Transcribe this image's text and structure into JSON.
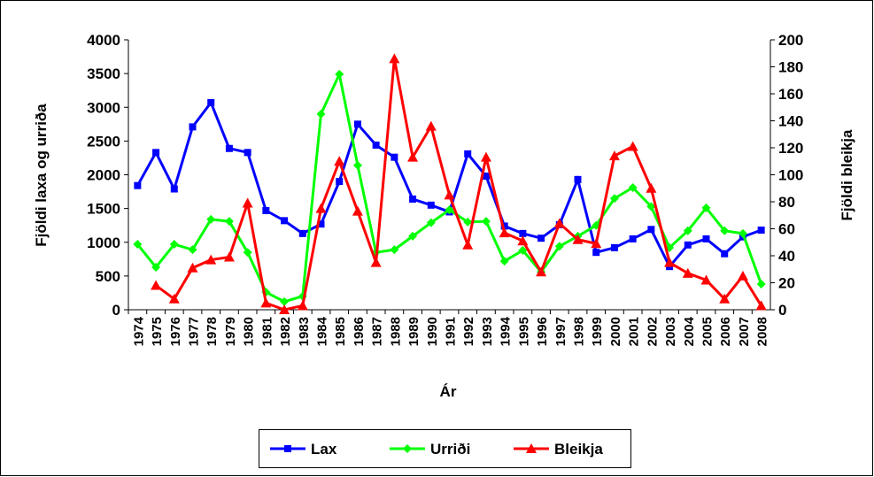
{
  "chart_data": {
    "type": "line",
    "y_label": "Fjöldi laxa og urriða",
    "y2_label": "Fjöldi bleikja",
    "x_label": "Ár",
    "categories": [
      "1974",
      "1975",
      "1976",
      "1977",
      "1978",
      "1979",
      "1980",
      "1981",
      "1982",
      "1983",
      "1984",
      "1985",
      "1986",
      "1987",
      "1988",
      "1989",
      "1990",
      "1991",
      "1992",
      "1993",
      "1994",
      "1995",
      "1996",
      "1997",
      "1998",
      "1999",
      "2000",
      "2001",
      "2002",
      "2003",
      "2004",
      "2005",
      "2006",
      "2007",
      "2008"
    ],
    "ylim": [
      0,
      4000
    ],
    "yticks": [
      0,
      500,
      1000,
      1500,
      2000,
      2500,
      3000,
      3500,
      4000
    ],
    "y2lim": [
      0,
      200
    ],
    "y2ticks": [
      0,
      20,
      40,
      60,
      80,
      100,
      120,
      140,
      160,
      180,
      200
    ],
    "legend": "bottom",
    "series": [
      {
        "name": "Lax",
        "color": "#0000ff",
        "marker": "square",
        "values": [
          1840,
          2330,
          1790,
          2710,
          3070,
          2390,
          2330,
          1470,
          1320,
          1130,
          1270,
          1900,
          2750,
          2440,
          2260,
          1640,
          1550,
          1450,
          2310,
          1980,
          1240,
          1130,
          1060,
          1260,
          1930,
          850,
          920,
          1050,
          1190,
          640,
          960,
          1050,
          830,
          1080,
          1180
        ]
      },
      {
        "name": "Urriði",
        "color": "#00ff00",
        "marker": "diamond",
        "values": [
          970,
          630,
          970,
          890,
          1340,
          1310,
          850,
          260,
          120,
          200,
          2900,
          3490,
          2140,
          850,
          890,
          1090,
          1290,
          1480,
          1300,
          1310,
          720,
          880,
          560,
          940,
          1090,
          1250,
          1650,
          1810,
          1530,
          920,
          1170,
          1510,
          1170,
          1130,
          380
        ]
      },
      {
        "name": "Bleikja",
        "color": "#ff0000",
        "marker": "triangle",
        "axis": "y2",
        "values": [
          null,
          18,
          8,
          31,
          37,
          39,
          79,
          5,
          0,
          3,
          75,
          110,
          73,
          35,
          186,
          113,
          136,
          85,
          48,
          113,
          57,
          51,
          28,
          64,
          52,
          49,
          114,
          121,
          90,
          35,
          27,
          22,
          8,
          25,
          3
        ]
      }
    ]
  }
}
